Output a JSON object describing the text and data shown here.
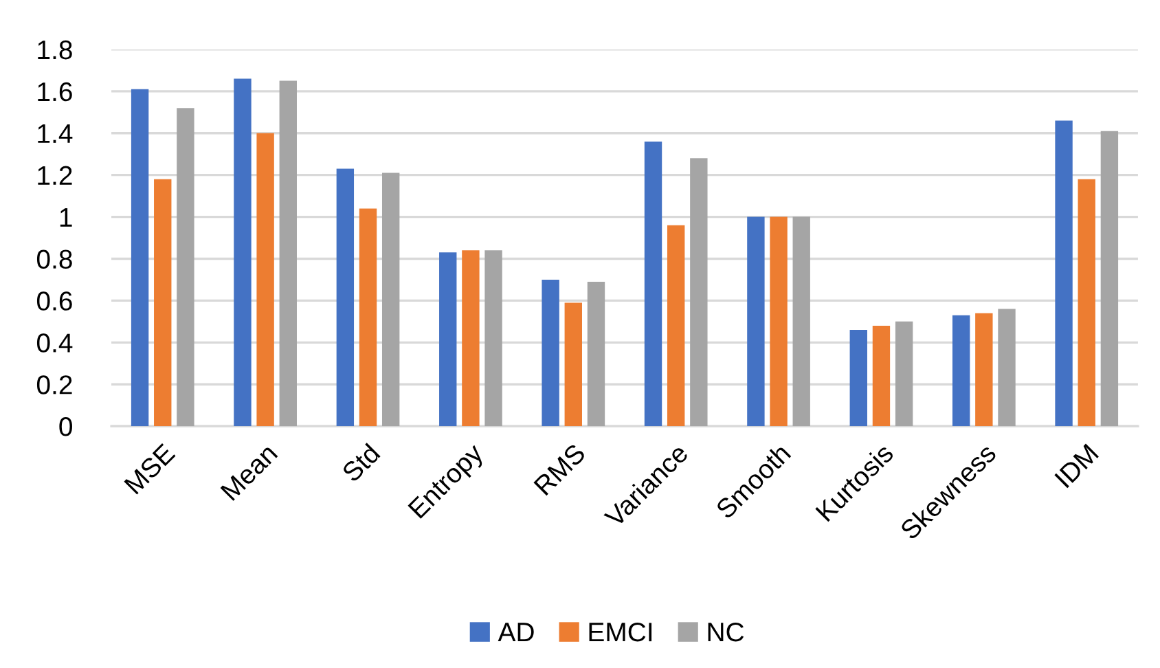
{
  "chart_data": {
    "type": "bar",
    "categories": [
      "MSE",
      "Mean",
      "Std",
      "Entropy",
      "RMS",
      "Variance",
      "Smooth",
      "Kurtosis",
      "Skewness",
      "IDM"
    ],
    "series": [
      {
        "name": "AD",
        "color": "#4472c4",
        "values": [
          1.61,
          1.66,
          1.23,
          0.83,
          0.7,
          1.36,
          1.0,
          0.46,
          0.53,
          1.46
        ]
      },
      {
        "name": "EMCI",
        "color": "#ed7d31",
        "values": [
          1.18,
          1.4,
          1.04,
          0.84,
          0.59,
          0.96,
          1.0,
          0.48,
          0.54,
          1.18
        ]
      },
      {
        "name": "NC",
        "color": "#a5a5a5",
        "values": [
          1.52,
          1.65,
          1.21,
          0.84,
          0.69,
          1.28,
          1.0,
          0.5,
          0.56,
          1.41
        ]
      }
    ],
    "ylim": [
      0,
      1.8
    ],
    "yticks": [
      0,
      0.2,
      0.4,
      0.6,
      0.8,
      1,
      1.2,
      1.4,
      1.6,
      1.8
    ],
    "grid": "y",
    "legend": "bottom"
  }
}
